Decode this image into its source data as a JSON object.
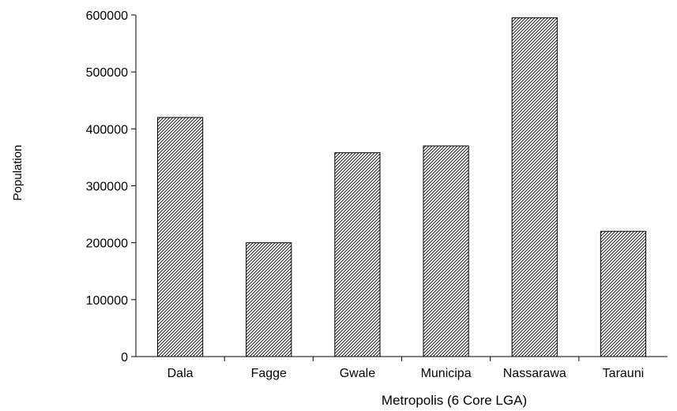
{
  "chart_data": {
    "type": "bar",
    "categories": [
      "Dala",
      "Fagge",
      "Gwale",
      "Municipa",
      "Nassarawa",
      "Tarauni"
    ],
    "values": [
      420000,
      200000,
      358000,
      370000,
      595000,
      220000
    ],
    "xlabel": "Metropolis (6 Core LGA)",
    "ylabel": "Population",
    "ylim": [
      0,
      600000
    ],
    "yticks": [
      "0",
      "100000",
      "200000",
      "300000",
      "400000",
      "500000",
      "600000"
    ],
    "bar_fill": "diagonal-hatch",
    "bar_color": "#000000",
    "background": "#ffffff",
    "grid": false,
    "legend": "none"
  }
}
